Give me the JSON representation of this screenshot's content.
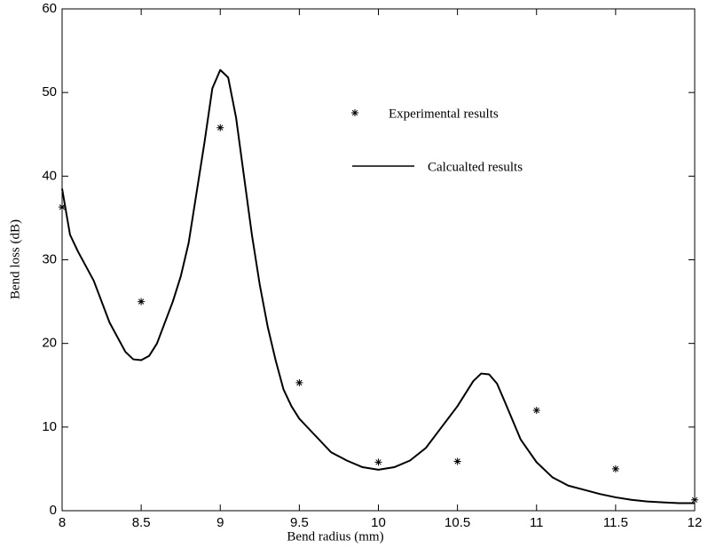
{
  "chart_data": {
    "type": "line",
    "xlabel": "Bend radius (mm)",
    "ylabel": "Bend loss (dB)",
    "xlim": [
      8,
      12
    ],
    "xticks": [
      8,
      8.5,
      9,
      9.5,
      10,
      10.5,
      11,
      11.5,
      12
    ],
    "ylim": [
      0,
      60
    ],
    "yticks": [
      0,
      10,
      20,
      30,
      40,
      50,
      60
    ],
    "grid": false,
    "series": [
      {
        "name": "Experimental results",
        "type": "scatter",
        "color": "#000000",
        "x": [
          8,
          8.5,
          9,
          9.5,
          10,
          10.5,
          11,
          11.5,
          12
        ],
        "values": [
          36.3,
          25,
          45.8,
          15.3,
          5.8,
          5.9,
          12,
          5,
          1.3
        ]
      },
      {
        "name": "Calcualted results",
        "type": "line",
        "color": "#000000",
        "x": [
          8,
          8.05,
          8.1,
          8.2,
          8.3,
          8.4,
          8.45,
          8.5,
          8.55,
          8.6,
          8.7,
          8.75,
          8.8,
          8.85,
          8.9,
          8.95,
          9.0,
          9.05,
          9.1,
          9.15,
          9.2,
          9.25,
          9.3,
          9.35,
          9.4,
          9.45,
          9.5,
          9.6,
          9.7,
          9.8,
          9.9,
          10.0,
          10.1,
          10.2,
          10.3,
          10.4,
          10.5,
          10.6,
          10.65,
          10.7,
          10.75,
          10.8,
          10.9,
          11.0,
          11.1,
          11.2,
          11.3,
          11.4,
          11.5,
          11.6,
          11.7,
          11.8,
          11.9,
          12
        ],
        "values": [
          38.5,
          33,
          31,
          27.5,
          22.5,
          19,
          18.1,
          18,
          18.5,
          20,
          25,
          28,
          32,
          38,
          44,
          50.5,
          52.7,
          51.8,
          47,
          40,
          33,
          27,
          22,
          18,
          14.5,
          12.5,
          11,
          9,
          7,
          6,
          5.2,
          4.9,
          5.2,
          6,
          7.5,
          10,
          12.5,
          15.5,
          16.4,
          16.3,
          15.2,
          13,
          8.5,
          5.8,
          4,
          3,
          2.5,
          2,
          1.6,
          1.3,
          1.1,
          1,
          0.9,
          0.9
        ]
      }
    ]
  }
}
